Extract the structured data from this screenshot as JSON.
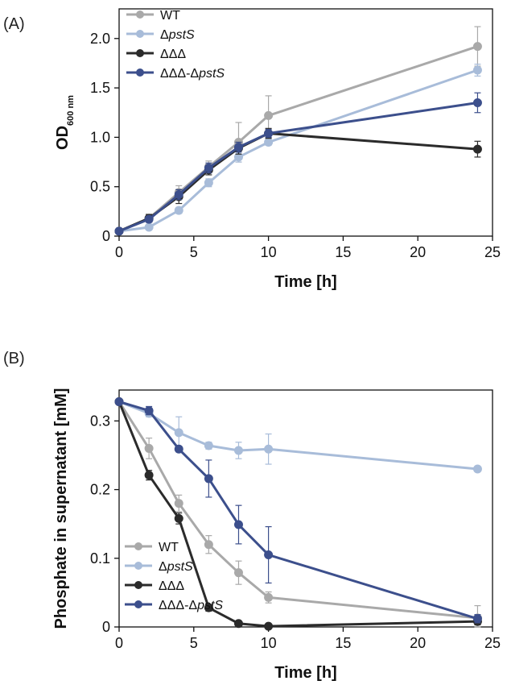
{
  "chart_data": [
    {
      "type": "line",
      "panel_label": "(A)",
      "xlabel": "Time [h]",
      "ylabel": "OD",
      "ylabel_sub": "600 nm",
      "xlim": [
        0,
        25
      ],
      "ylim": [
        0,
        2.3
      ],
      "xticks": [
        "0",
        "5",
        "10",
        "15",
        "20",
        "25"
      ],
      "yticks": [
        "0",
        "0.5",
        "1.0",
        "1.5",
        "2.0"
      ],
      "legend_position": "top-left",
      "series": [
        {
          "name": "WT",
          "name_prefix": "",
          "name_italic": "WT",
          "color": "#a9a9a9",
          "x": [
            0,
            2,
            4,
            6,
            8,
            10,
            24
          ],
          "y": [
            0.05,
            0.18,
            0.44,
            0.7,
            0.95,
            1.22,
            1.92
          ],
          "err": [
            0.02,
            0.03,
            0.07,
            0.06,
            0.2,
            0.2,
            0.2
          ]
        },
        {
          "name": "ΔpstS",
          "name_prefix": "Δ",
          "name_italic": "pstS",
          "color": "#a8bcd9",
          "x": [
            0,
            2,
            4,
            6,
            8,
            10,
            24
          ],
          "y": [
            0.05,
            0.09,
            0.26,
            0.54,
            0.8,
            0.95,
            1.68
          ],
          "err": [
            0.02,
            0.02,
            0.03,
            0.04,
            0.05,
            0.03,
            0.06
          ]
        },
        {
          "name": "ΔΔΔ",
          "name_prefix": "ΔΔΔ",
          "name_italic": "",
          "color": "#2b2b2b",
          "x": [
            0,
            2,
            4,
            6,
            8,
            10,
            24
          ],
          "y": [
            0.05,
            0.18,
            0.4,
            0.67,
            0.89,
            1.04,
            0.88
          ],
          "err": [
            0.02,
            0.04,
            0.07,
            0.05,
            0.06,
            0.05,
            0.08
          ]
        },
        {
          "name": "ΔΔΔ-ΔpstS",
          "name_prefix": "ΔΔΔ-Δ",
          "name_italic": "pstS",
          "color": "#3c4f8c",
          "x": [
            0,
            2,
            4,
            6,
            8,
            10,
            24
          ],
          "y": [
            0.05,
            0.17,
            0.42,
            0.69,
            0.9,
            1.04,
            1.35
          ],
          "err": [
            0.02,
            0.03,
            0.05,
            0.05,
            0.05,
            0.04,
            0.1
          ]
        }
      ]
    },
    {
      "type": "line",
      "panel_label": "(B)",
      "xlabel": "Time [h]",
      "ylabel": "Phosphate in supernatant [mM]",
      "ylabel_sub": "",
      "xlim": [
        0,
        25
      ],
      "ylim": [
        0,
        0.345
      ],
      "xticks": [
        "0",
        "5",
        "10",
        "15",
        "20",
        "25"
      ],
      "yticks": [
        "0",
        "0.1",
        "0.2",
        "0.3"
      ],
      "legend_position": "bottom-left",
      "series": [
        {
          "name": "WT",
          "name_prefix": "",
          "name_italic": "WT",
          "color": "#a9a9a9",
          "x": [
            0,
            2,
            4,
            6,
            8,
            10,
            24
          ],
          "y": [
            0.328,
            0.26,
            0.18,
            0.12,
            0.079,
            0.043,
            0.013
          ],
          "err": [
            0.003,
            0.015,
            0.012,
            0.013,
            0.017,
            0.008,
            0.018
          ]
        },
        {
          "name": "ΔpstS",
          "name_prefix": "Δ",
          "name_italic": "pstS",
          "color": "#a8bcd9",
          "x": [
            0,
            2,
            4,
            6,
            8,
            10,
            24
          ],
          "y": [
            0.328,
            0.311,
            0.283,
            0.264,
            0.257,
            0.259,
            0.23
          ],
          "err": [
            0.003,
            0.005,
            0.023,
            0.005,
            0.012,
            0.022,
            0.004
          ]
        },
        {
          "name": "ΔΔΔ",
          "name_prefix": "ΔΔΔ",
          "name_italic": "",
          "color": "#2b2b2b",
          "x": [
            0,
            2,
            4,
            6,
            8,
            10,
            24
          ],
          "y": [
            0.328,
            0.221,
            0.158,
            0.028,
            0.005,
            0.001,
            0.008
          ],
          "err": [
            0.003,
            0.007,
            0.008,
            0.005,
            0.003,
            0.002,
            0.005
          ]
        },
        {
          "name": "ΔΔΔ-ΔpstS",
          "name_prefix": "ΔΔΔ-Δ",
          "name_italic": "pstS",
          "color": "#3c4f8c",
          "x": [
            0,
            2,
            4,
            6,
            8,
            10,
            24
          ],
          "y": [
            0.328,
            0.315,
            0.259,
            0.216,
            0.149,
            0.105,
            0.012
          ],
          "err": [
            0.003,
            0.006,
            0.004,
            0.027,
            0.028,
            0.041,
            0.006
          ]
        }
      ]
    }
  ]
}
